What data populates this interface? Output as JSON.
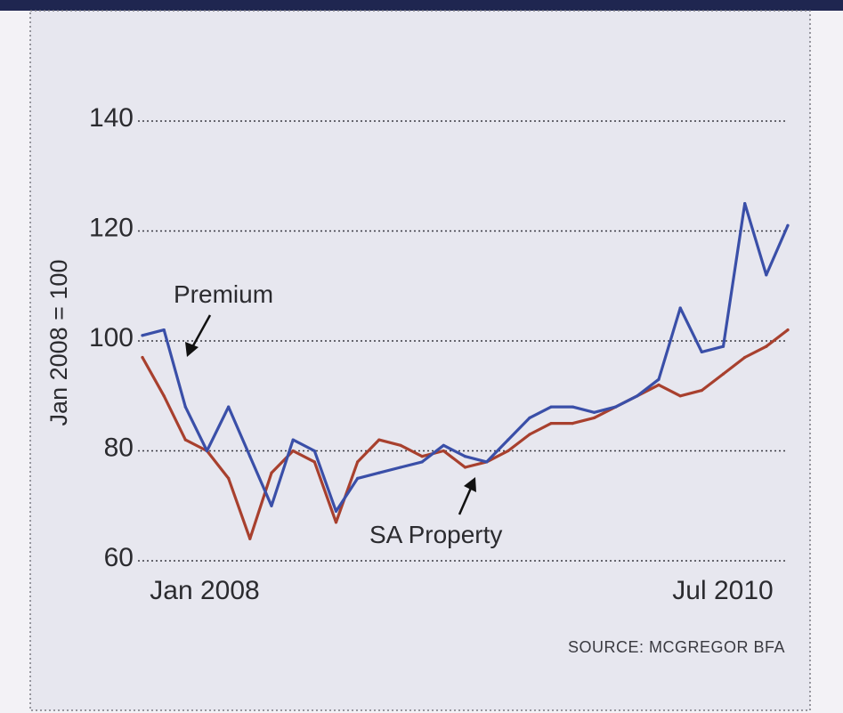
{
  "chart_data": {
    "type": "line",
    "ylabel": "Jan 2008 = 100",
    "ylim": [
      60,
      140
    ],
    "yticks": [
      60,
      80,
      100,
      120,
      140
    ],
    "x_tick_labels": [
      "Jan 2008",
      "Jul 2010"
    ],
    "x_range": [
      "2008-01",
      "2010-07"
    ],
    "grid": "horizontal dotted",
    "source": "SOURCE: MCGREGOR BFA",
    "annotations": [
      "Premium",
      "SA Property"
    ],
    "colors": {
      "Premium": "#3a4fa8",
      "SA Property": "#a8402e"
    },
    "series": [
      {
        "name": "Premium",
        "x": [
          "2008-01",
          "2008-02",
          "2008-03",
          "2008-04",
          "2008-05",
          "2008-06",
          "2008-07",
          "2008-08",
          "2008-09",
          "2008-10",
          "2008-11",
          "2008-12",
          "2009-01",
          "2009-02",
          "2009-03",
          "2009-04",
          "2009-05",
          "2009-06",
          "2009-07",
          "2009-08",
          "2009-09",
          "2009-10",
          "2009-11",
          "2009-12",
          "2010-01",
          "2010-02",
          "2010-03",
          "2010-04",
          "2010-05",
          "2010-06",
          "2010-07"
        ],
        "values": [
          101,
          102,
          88,
          80,
          88,
          79,
          70,
          82,
          80,
          69,
          75,
          76,
          77,
          78,
          81,
          79,
          78,
          82,
          86,
          88,
          88,
          87,
          88,
          90,
          93,
          106,
          98,
          99,
          125,
          112,
          121
        ]
      },
      {
        "name": "SA Property",
        "x": [
          "2008-01",
          "2008-02",
          "2008-03",
          "2008-04",
          "2008-05",
          "2008-06",
          "2008-07",
          "2008-08",
          "2008-09",
          "2008-10",
          "2008-11",
          "2008-12",
          "2009-01",
          "2009-02",
          "2009-03",
          "2009-04",
          "2009-05",
          "2009-06",
          "2009-07",
          "2009-08",
          "2009-09",
          "2009-10",
          "2009-11",
          "2009-12",
          "2010-01",
          "2010-02",
          "2010-03",
          "2010-04",
          "2010-05",
          "2010-06",
          "2010-07"
        ],
        "values": [
          97,
          90,
          82,
          80,
          75,
          64,
          76,
          80,
          78,
          67,
          78,
          82,
          81,
          79,
          80,
          77,
          78,
          80,
          83,
          85,
          85,
          86,
          88,
          90,
          92,
          90,
          91,
          94,
          97,
          99,
          102
        ]
      }
    ]
  }
}
